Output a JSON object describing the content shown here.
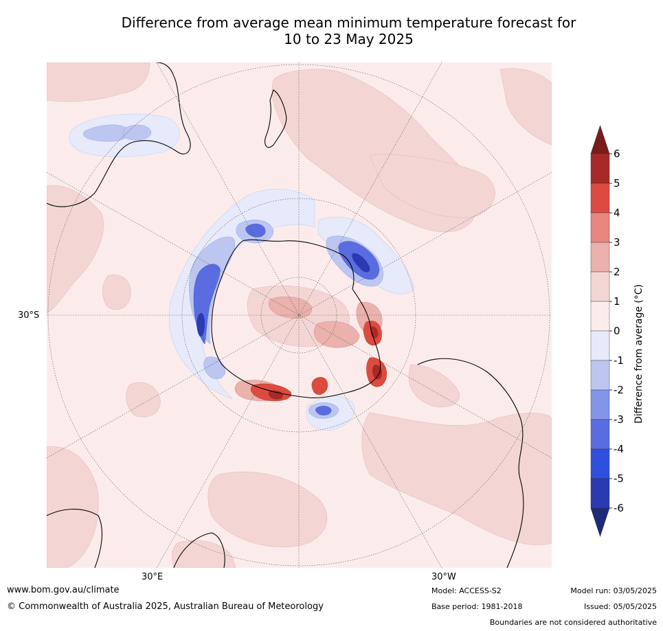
{
  "title": {
    "line1": "Difference from average mean minimum temperature forecast for",
    "line2": "10 to 23 May 2025"
  },
  "map": {
    "lat_label": "30°S",
    "lon_labels": [
      "30°E",
      "30°W"
    ],
    "colors": {
      "ocean_bg": "#fbeceb",
      "warm1": "#f3d6d4",
      "warm2": "#ebb1ac",
      "warm3": "#e7877f",
      "warm4": "#dd4b40",
      "warm5": "#a82a27",
      "cool1": "#e6eafa",
      "cool2": "#bcc6f1",
      "cool3": "#8395e9",
      "cool4": "#5a6de0",
      "cool5": "#2f4fde",
      "cool6": "#2a3ab0"
    }
  },
  "colorbar": {
    "label": "Difference from average (°C)",
    "ticks": [
      "6",
      "5",
      "4",
      "3",
      "2",
      "1",
      "0",
      "-1",
      "-2",
      "-3",
      "-4",
      "-5",
      "-6"
    ],
    "colors": [
      "#7a1c19",
      "#a82a27",
      "#dd4b40",
      "#e7877f",
      "#ebb1ac",
      "#f3d6d4",
      "#fbeceb",
      "#e6eafa",
      "#bcc6f1",
      "#8395e9",
      "#5a6de0",
      "#2f4fde",
      "#2a3ab0",
      "#1f2a7a"
    ]
  },
  "footer": {
    "website": "www.bom.gov.au/climate",
    "copyright": "© Commonwealth of Australia 2025, Australian Bureau of Meteorology",
    "model": "Model: ACCESS-S2",
    "base_period": "Base period: 1981-2018",
    "model_run": "Model run: 03/05/2025",
    "issued": "Issued: 05/05/2025",
    "disclaimer": "Boundaries are not considered authoritative"
  }
}
